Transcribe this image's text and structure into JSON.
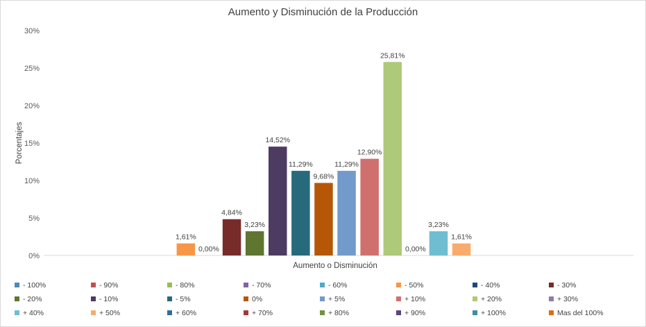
{
  "chart_data": {
    "type": "bar",
    "title": "Aumento y Disminución de la Producción",
    "xlabel": "Aumento o Disminución",
    "ylabel": "Porcentajes",
    "ylim": [
      0,
      30
    ],
    "yticks": [
      "0%",
      "5%",
      "10%",
      "15%",
      "20%",
      "25%",
      "30%"
    ],
    "grid": false,
    "legend_position": "bottom",
    "series": [
      {
        "name": "- 100%",
        "value": null,
        "label": "",
        "color": "#4e89b9"
      },
      {
        "name": "- 90%",
        "value": null,
        "label": "",
        "color": "#c0504d"
      },
      {
        "name": "- 80%",
        "value": null,
        "label": "",
        "color": "#9bbb59"
      },
      {
        "name": "- 70%",
        "value": null,
        "label": "",
        "color": "#8064a2"
      },
      {
        "name": "- 60%",
        "value": null,
        "label": "",
        "color": "#4bacc6"
      },
      {
        "name": "- 50%",
        "value": 1.61,
        "label": "1,61%",
        "color": "#f79646"
      },
      {
        "name": "- 40%",
        "value": 0.0,
        "label": "0,00%",
        "color": "#1f497d"
      },
      {
        "name": "- 30%",
        "value": 4.84,
        "label": "4,84%",
        "color": "#772c2a"
      },
      {
        "name": "- 20%",
        "value": 3.23,
        "label": "3,23%",
        "color": "#5f7530"
      },
      {
        "name": "- 10%",
        "value": 14.52,
        "label": "14,52%",
        "color": "#4d3b62"
      },
      {
        "name": "- 5%",
        "value": 11.29,
        "label": "11,29%",
        "color": "#276a7c"
      },
      {
        "name": "0%",
        "value": 9.68,
        "label": "9,68%",
        "color": "#b65708"
      },
      {
        "name": "+ 5%",
        "value": 11.29,
        "label": "11,29%",
        "color": "#729aca"
      },
      {
        "name": "+ 10%",
        "value": 12.9,
        "label": "12,90%",
        "color": "#d0706e"
      },
      {
        "name": "+ 20%",
        "value": 25.81,
        "label": "25,81%",
        "color": "#afc97a"
      },
      {
        "name": "+ 30%",
        "value": 0.0,
        "label": "0,00%",
        "color": "#8e7cab"
      },
      {
        "name": "+ 40%",
        "value": 3.23,
        "label": "3,23%",
        "color": "#6fbdd1"
      },
      {
        "name": "+ 50%",
        "value": 1.61,
        "label": "1,61%",
        "color": "#f9ab6b"
      },
      {
        "name": "+ 60%",
        "value": null,
        "label": "",
        "color": "#2c6f9e"
      },
      {
        "name": "+ 70%",
        "value": null,
        "label": "",
        "color": "#a23b38"
      },
      {
        "name": "+ 80%",
        "value": null,
        "label": "",
        "color": "#71933a"
      },
      {
        "name": "+ 90%",
        "value": null,
        "label": "",
        "color": "#5c4480"
      },
      {
        "name": "+ 100%",
        "value": null,
        "label": "",
        "color": "#3a8ea5"
      },
      {
        "name": "Mas del 100%",
        "value": null,
        "label": "",
        "color": "#e36c09"
      }
    ]
  }
}
